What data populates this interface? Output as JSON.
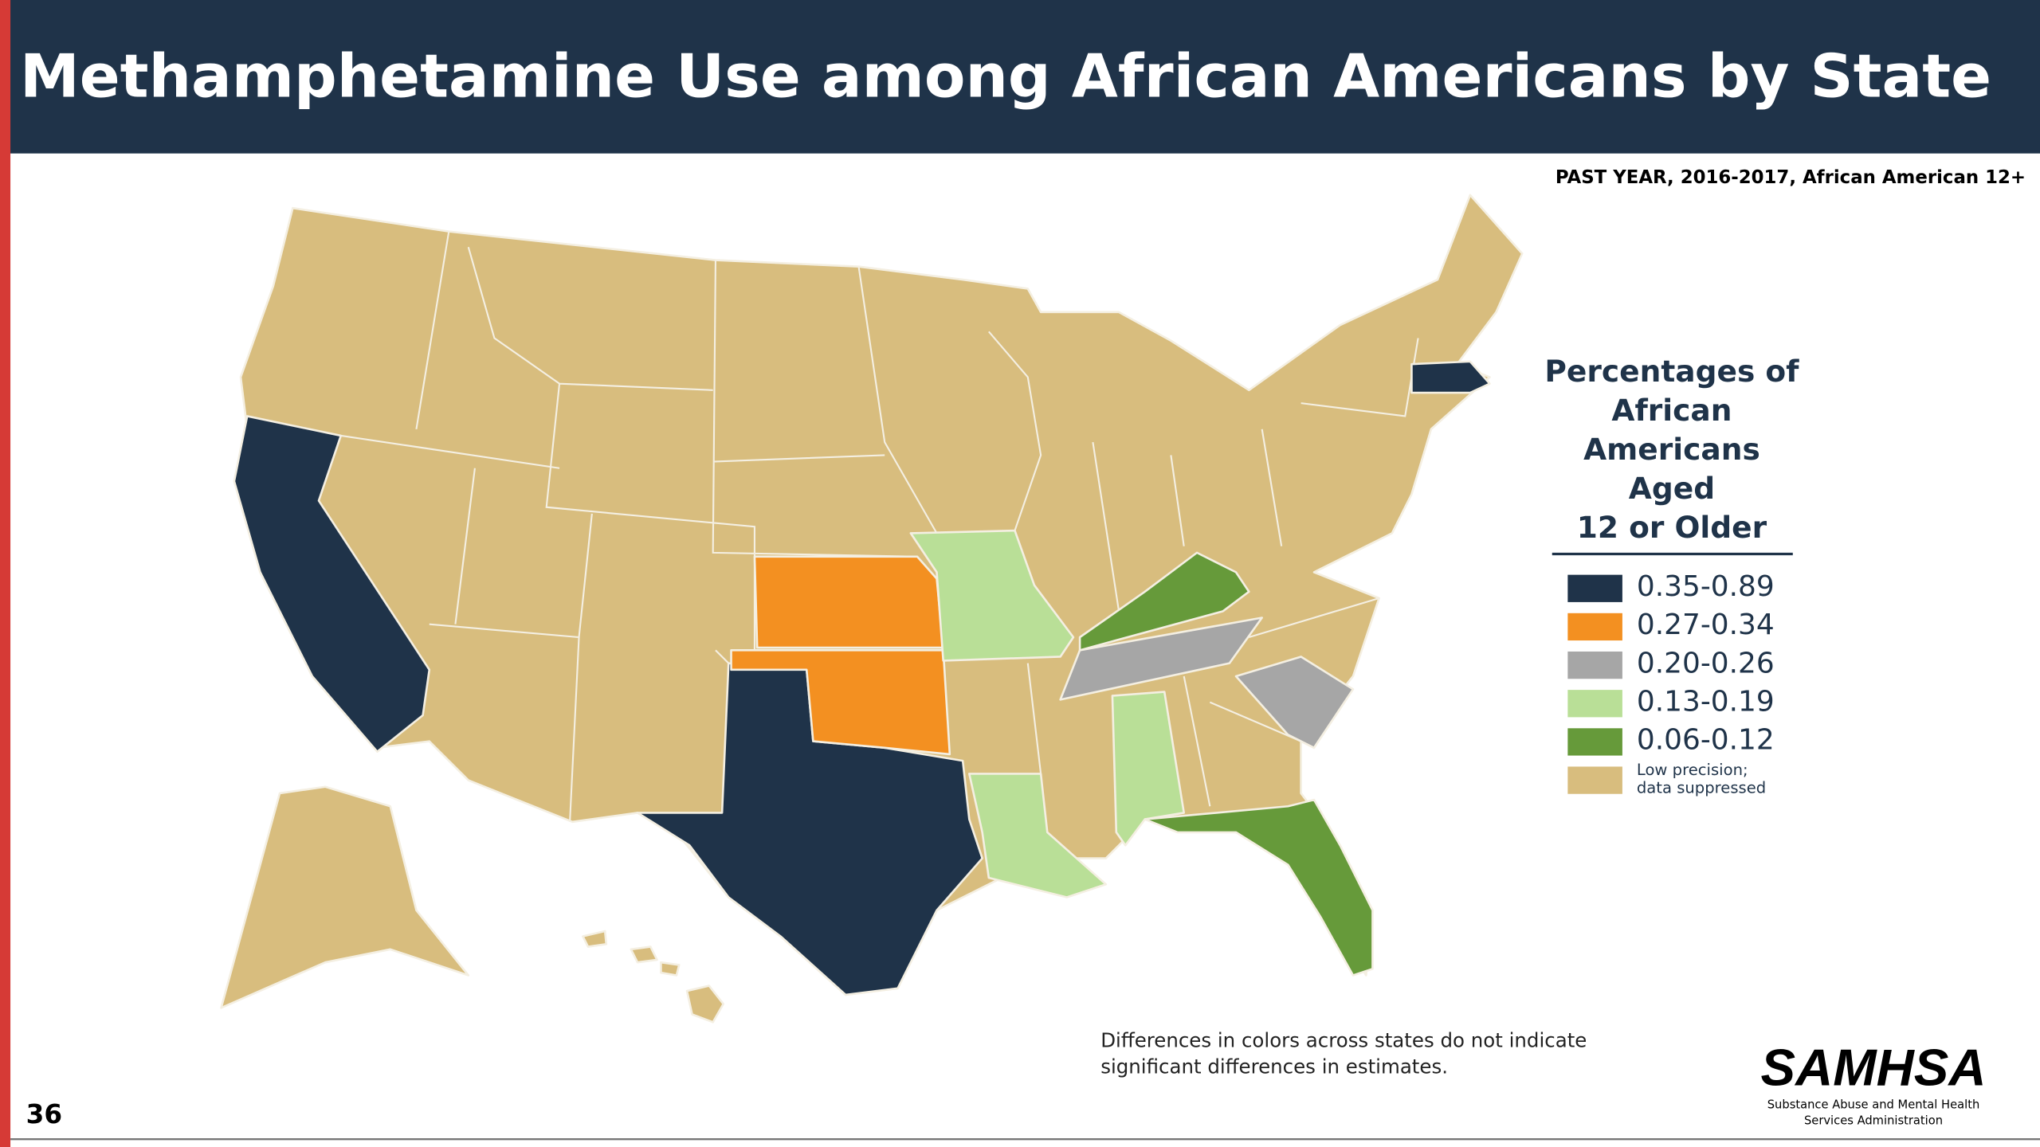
{
  "header": {
    "title": "Methamphetamine Use among African Americans by State"
  },
  "subtitle": "PAST YEAR, 2016-2017,  African American 12+",
  "legend": {
    "title": [
      "Percentages of",
      "African",
      "Americans",
      "Aged",
      "12 or Older"
    ],
    "items": [
      {
        "label": [
          "0.35-0.89"
        ],
        "color": "#1f3349"
      },
      {
        "label": [
          "0.27-0.34"
        ],
        "color": "#f39021"
      },
      {
        "label": [
          "0.20-0.26"
        ],
        "color": "#a6a6a6"
      },
      {
        "label": [
          "0.13-0.19"
        ],
        "color": "#b9df97"
      },
      {
        "label": [
          "0.06-0.12"
        ],
        "color": "#669a3a"
      },
      {
        "label": [
          "Low precision;",
          "data suppressed"
        ],
        "color": "#d8bd7e"
      }
    ]
  },
  "note": [
    "Differences in colors across states do not indicate",
    "significant differences in estimates."
  ],
  "page_number": "36",
  "logo": {
    "name": "SAMHSA",
    "subtitle": [
      "Substance Abuse and Mental Health",
      "Services Administration"
    ]
  }
}
